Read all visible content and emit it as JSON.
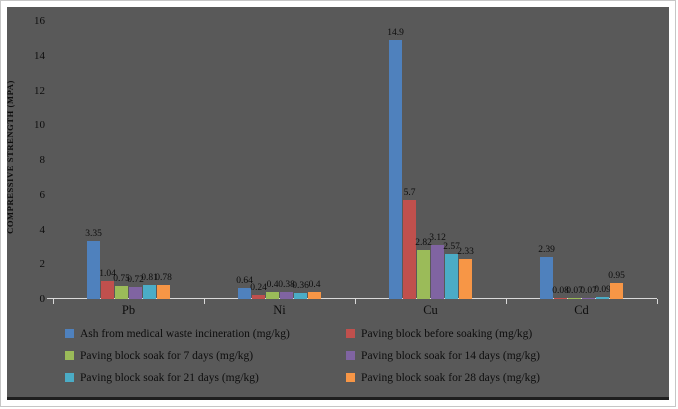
{
  "chart_data": {
    "type": "bar",
    "title": "",
    "ylabel": "COMPRESSIVE STRENGTH  (MPA)",
    "xlabel": "",
    "ylim": [
      0,
      16
    ],
    "yticks": [
      0,
      2,
      4,
      6,
      8,
      10,
      12,
      14,
      16
    ],
    "grid": false,
    "legend_position": "bottom",
    "background_color": "#595959",
    "text_color": "#0d0d0d",
    "categories": [
      "Pb",
      "Ni",
      "Cu",
      "Cd"
    ],
    "series": [
      {
        "name": "Ash from medical waste incineration (mg/kg)",
        "color": "#4F81BD",
        "values": [
          3.35,
          0.64,
          14.9,
          2.39
        ]
      },
      {
        "name": "Paving block before soaking (mg/kg)",
        "color": "#C0504D",
        "values": [
          1.04,
          0.24,
          5.7,
          0.08
        ]
      },
      {
        "name": "Paving block soak for 7 days (mg/kg)",
        "color": "#9BBB59",
        "values": [
          0.75,
          0.4,
          2.82,
          0.07
        ]
      },
      {
        "name": "Paving block soak for 14 days (mg/kg)",
        "color": "#8064A2",
        "values": [
          0.72,
          0.38,
          3.12,
          0.07
        ]
      },
      {
        "name": "Paving block soak for 21 days (mg/kg)",
        "color": "#4BACC6",
        "values": [
          0.81,
          0.36,
          2.57,
          0.09
        ]
      },
      {
        "name": "Paving block soak for 28 days (mg/kg)",
        "color": "#F79646",
        "values": [
          0.78,
          0.4,
          2.33,
          0.95
        ]
      }
    ]
  }
}
